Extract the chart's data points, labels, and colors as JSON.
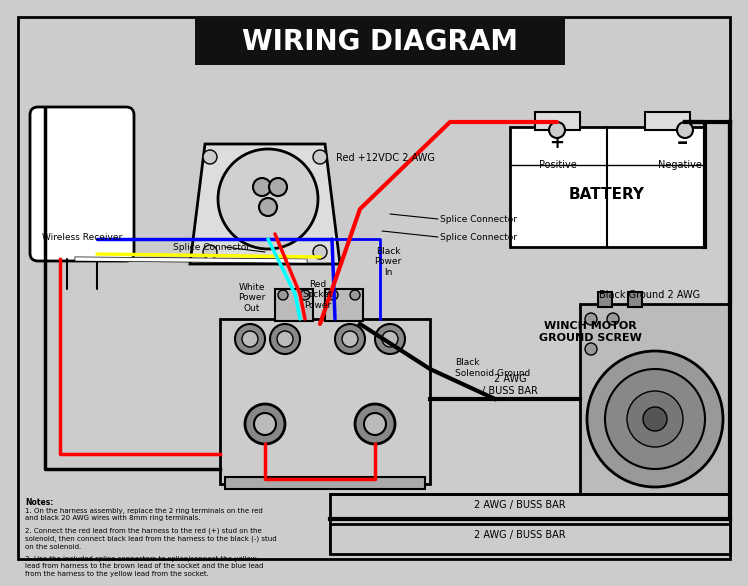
{
  "title": "WIRING DIAGRAM",
  "title_bg": "#111111",
  "title_color": "#ffffff",
  "bg_color": "#cccccc",
  "labels": {
    "wireless_receiver": "Wireless Receiver",
    "splice_connector": "Splice Connector",
    "splice_connector2": "Splice Connector",
    "splice_connector3": "Splice Connector",
    "white_power_out": "White\nPower\nOut",
    "red_socket_power": "Red\nSocket\nPower",
    "black_power_in": "Black\nPower\nIn",
    "black_solenoid_ground": "Black\nSolenoid Ground",
    "winch_motor": "WINCH MOTOR\nGROUND SCREW",
    "battery": "BATTERY",
    "positive": "Positive",
    "negative": "Negative",
    "red_wire_label": "Red +12VDC 2 AWG",
    "black_ground_label": "Black Ground 2 AWG",
    "buss_bar1": "2 AWG\n/ BUSS BAR",
    "buss_bar2": "2 AWG / BUSS BAR",
    "buss_bar3": "2 AWG / BUSS BAR"
  },
  "notes": [
    "Notes:",
    "1. On the harness assembly, replace the 2 ring terminals on the red\nand black 20 AWG wires with 8mm ring terminals.",
    "2. Connect the red lead from the harness to the red (+) stud on the\nsolenoid, then connect black lead from the harness to the black (-) stud\non the solenoid.",
    "3. Use the included splice connectors to splice/connect the yellow\nlead from harness to the brown lead of the socket and the blue lead\nfrom the harness to the yellow lead from the socket."
  ]
}
